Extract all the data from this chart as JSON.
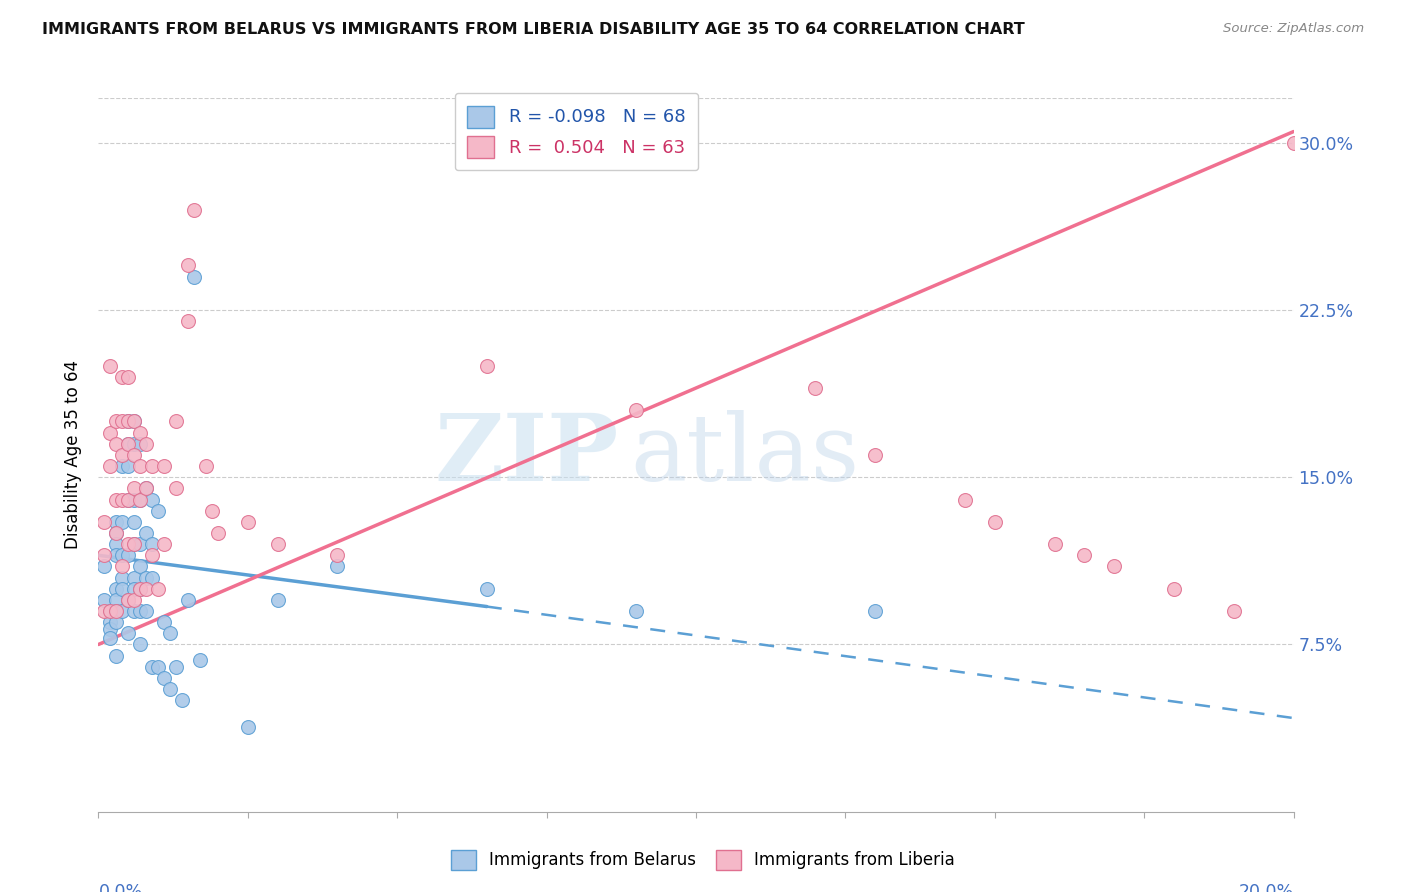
{
  "title": "IMMIGRANTS FROM BELARUS VS IMMIGRANTS FROM LIBERIA DISABILITY AGE 35 TO 64 CORRELATION CHART",
  "source": "Source: ZipAtlas.com",
  "ylabel": "Disability Age 35 to 64",
  "yticks": [
    0.075,
    0.15,
    0.225,
    0.3
  ],
  "ytick_labels": [
    "7.5%",
    "15.0%",
    "22.5%",
    "30.0%"
  ],
  "xmin": 0.0,
  "xmax": 0.2,
  "ymin": 0.0,
  "ymax": 0.32,
  "legend_r_belarus": "-0.098",
  "legend_n_belarus": "68",
  "legend_r_liberia": "0.504",
  "legend_n_liberia": "63",
  "color_belarus_fill": "#aac8e8",
  "color_belarus_edge": "#5b9fd4",
  "color_liberia_fill": "#f5b8c8",
  "color_liberia_edge": "#e07090",
  "color_belarus_line": "#5b9fd4",
  "color_liberia_line": "#f07090",
  "color_grid": "#cccccc",
  "color_axis_blue": "#4472c4",
  "color_legend_blue": "#2255aa",
  "color_legend_pink": "#cc3366",
  "bel_line_x0": 0.0,
  "bel_line_y0": 0.115,
  "bel_line_x1": 0.065,
  "bel_line_y1": 0.092,
  "bel_line_xdash_end": 0.2,
  "bel_line_ydash_end": 0.042,
  "lib_line_x0": 0.0,
  "lib_line_y0": 0.075,
  "lib_line_x1": 0.2,
  "lib_line_y1": 0.305,
  "belarus_x": [
    0.001,
    0.001,
    0.002,
    0.002,
    0.002,
    0.002,
    0.003,
    0.003,
    0.003,
    0.003,
    0.003,
    0.003,
    0.003,
    0.003,
    0.003,
    0.004,
    0.004,
    0.004,
    0.004,
    0.004,
    0.004,
    0.005,
    0.005,
    0.005,
    0.005,
    0.005,
    0.005,
    0.005,
    0.006,
    0.006,
    0.006,
    0.006,
    0.006,
    0.006,
    0.006,
    0.006,
    0.007,
    0.007,
    0.007,
    0.007,
    0.007,
    0.007,
    0.007,
    0.008,
    0.008,
    0.008,
    0.008,
    0.009,
    0.009,
    0.009,
    0.009,
    0.01,
    0.01,
    0.011,
    0.011,
    0.012,
    0.012,
    0.013,
    0.014,
    0.015,
    0.016,
    0.017,
    0.025,
    0.03,
    0.04,
    0.065,
    0.09,
    0.13
  ],
  "belarus_y": [
    0.11,
    0.095,
    0.09,
    0.085,
    0.082,
    0.078,
    0.13,
    0.125,
    0.12,
    0.115,
    0.1,
    0.095,
    0.09,
    0.085,
    0.07,
    0.155,
    0.13,
    0.115,
    0.105,
    0.1,
    0.09,
    0.175,
    0.165,
    0.155,
    0.14,
    0.115,
    0.095,
    0.08,
    0.175,
    0.165,
    0.14,
    0.13,
    0.12,
    0.105,
    0.1,
    0.09,
    0.165,
    0.14,
    0.12,
    0.11,
    0.1,
    0.09,
    0.075,
    0.145,
    0.125,
    0.105,
    0.09,
    0.14,
    0.12,
    0.105,
    0.065,
    0.135,
    0.065,
    0.085,
    0.06,
    0.08,
    0.055,
    0.065,
    0.05,
    0.095,
    0.24,
    0.068,
    0.038,
    0.095,
    0.11,
    0.1,
    0.09,
    0.09
  ],
  "liberia_x": [
    0.001,
    0.001,
    0.001,
    0.002,
    0.002,
    0.002,
    0.002,
    0.003,
    0.003,
    0.003,
    0.003,
    0.003,
    0.004,
    0.004,
    0.004,
    0.004,
    0.004,
    0.005,
    0.005,
    0.005,
    0.005,
    0.005,
    0.005,
    0.006,
    0.006,
    0.006,
    0.006,
    0.006,
    0.007,
    0.007,
    0.007,
    0.007,
    0.008,
    0.008,
    0.008,
    0.009,
    0.009,
    0.01,
    0.011,
    0.011,
    0.013,
    0.013,
    0.015,
    0.015,
    0.016,
    0.018,
    0.019,
    0.02,
    0.025,
    0.03,
    0.04,
    0.065,
    0.09,
    0.13,
    0.145,
    0.15,
    0.16,
    0.165,
    0.17,
    0.18,
    0.19,
    0.2,
    0.12
  ],
  "liberia_y": [
    0.13,
    0.115,
    0.09,
    0.2,
    0.17,
    0.155,
    0.09,
    0.175,
    0.165,
    0.14,
    0.125,
    0.09,
    0.195,
    0.175,
    0.16,
    0.14,
    0.11,
    0.195,
    0.175,
    0.165,
    0.14,
    0.12,
    0.095,
    0.175,
    0.16,
    0.145,
    0.12,
    0.095,
    0.17,
    0.155,
    0.14,
    0.1,
    0.165,
    0.145,
    0.1,
    0.155,
    0.115,
    0.1,
    0.155,
    0.12,
    0.175,
    0.145,
    0.245,
    0.22,
    0.27,
    0.155,
    0.135,
    0.125,
    0.13,
    0.12,
    0.115,
    0.2,
    0.18,
    0.16,
    0.14,
    0.13,
    0.12,
    0.115,
    0.11,
    0.1,
    0.09,
    0.3,
    0.19
  ]
}
